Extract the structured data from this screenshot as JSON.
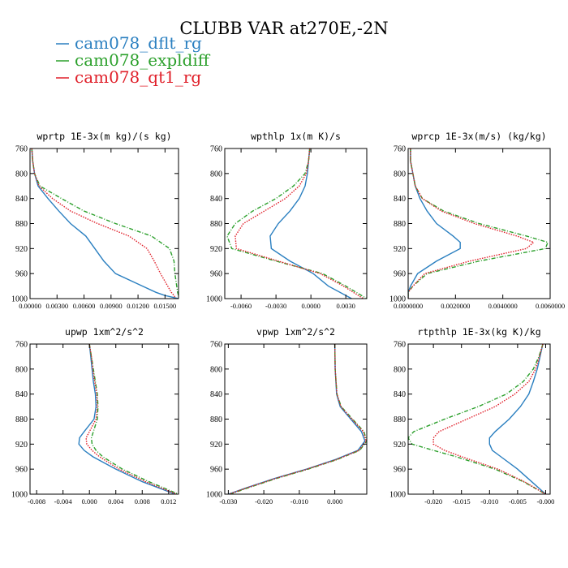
{
  "figure": {
    "title": "CLUBB VAR at270E,-2N",
    "legend": [
      {
        "label": "cam078_dflt_rg",
        "color": "#2a7fc0",
        "dash": "solid"
      },
      {
        "label": "cam078_expldiff",
        "color": "#2ca02c",
        "dash": "dashdot"
      },
      {
        "label": "cam078_qt1_rg",
        "color": "#e0202a",
        "dash": "dotted"
      }
    ]
  },
  "chart_data": [
    {
      "type": "line",
      "title": "wprtp  1E-3x(m kg)/(s kg)",
      "xlim": [
        0,
        0.0165
      ],
      "ylim": [
        760,
        1000
      ],
      "y_inverted": true,
      "xticks": [
        0,
        0.003,
        0.006,
        0.009,
        0.012,
        0.015
      ],
      "xtick_labels": [
        "0.00000",
        "0.00300",
        "0.00600",
        "0.00900",
        "0.01200",
        "0.01500"
      ],
      "yticks": [
        760,
        800,
        840,
        880,
        920,
        960,
        1000
      ],
      "ytick_labels": [
        "760",
        "800",
        "840",
        "880",
        "920",
        "960",
        "1000"
      ],
      "y": [
        760,
        780,
        800,
        820,
        840,
        860,
        880,
        900,
        920,
        940,
        960,
        980,
        990,
        995,
        1000
      ],
      "series": [
        {
          "name": "cam078_dflt_rg",
          "values": [
            0.0002,
            0.0003,
            0.0005,
            0.0009,
            0.002,
            0.0032,
            0.0045,
            0.0062,
            0.0072,
            0.0082,
            0.0095,
            0.0125,
            0.014,
            0.015,
            0.0165
          ]
        },
        {
          "name": "cam078_expldiff",
          "values": [
            0.0002,
            0.0003,
            0.0005,
            0.0011,
            0.0035,
            0.006,
            0.0095,
            0.0135,
            0.0155,
            0.016,
            0.0161,
            0.0163,
            0.0164,
            0.0165,
            0.0166
          ]
        },
        {
          "name": "cam078_qt1_rg",
          "values": [
            0.0002,
            0.0003,
            0.0005,
            0.001,
            0.0025,
            0.0045,
            0.0075,
            0.011,
            0.013,
            0.0138,
            0.0145,
            0.0153,
            0.0157,
            0.016,
            0.0162
          ]
        }
      ]
    },
    {
      "type": "line",
      "title": "wpthlp  1x(m K)/s",
      "xlim": [
        -0.0074,
        0.0048
      ],
      "ylim": [
        760,
        1000
      ],
      "y_inverted": true,
      "xticks": [
        -0.006,
        -0.003,
        0,
        0.003
      ],
      "xtick_labels": [
        "-0.0060",
        "-0.0030",
        "0.0000",
        "0.0030"
      ],
      "yticks": [
        760,
        800,
        840,
        880,
        920,
        960,
        1000
      ],
      "ytick_labels": [
        "760",
        "800",
        "840",
        "880",
        "920",
        "960",
        "1000"
      ],
      "y": [
        760,
        780,
        800,
        820,
        840,
        860,
        880,
        900,
        920,
        940,
        960,
        980,
        1000
      ],
      "series": [
        {
          "name": "cam078_dflt_rg",
          "values": [
            -0.0001,
            -0.0002,
            -0.0003,
            -0.0005,
            -0.001,
            -0.0018,
            -0.0028,
            -0.0035,
            -0.0034,
            -0.0018,
            0.0002,
            0.0015,
            0.0035
          ]
        },
        {
          "name": "cam078_expldiff",
          "values": [
            -0.0001,
            -0.0002,
            -0.0005,
            -0.0015,
            -0.003,
            -0.005,
            -0.0065,
            -0.0072,
            -0.0068,
            -0.003,
            0.001,
            0.003,
            0.0048
          ]
        },
        {
          "name": "cam078_qt1_rg",
          "values": [
            -0.0001,
            -0.0002,
            -0.0004,
            -0.001,
            -0.0022,
            -0.004,
            -0.0058,
            -0.0065,
            -0.0064,
            -0.0028,
            0.0008,
            0.0028,
            0.0045
          ]
        }
      ]
    },
    {
      "type": "line",
      "title": "wprcp  1E-3x(m/s) (kg/kg)",
      "xlim": [
        0,
        0.006
      ],
      "ylim": [
        760,
        1000
      ],
      "y_inverted": true,
      "xticks": [
        0,
        0.002,
        0.004,
        0.006
      ],
      "xtick_labels": [
        "0.0000000",
        "0.0020000",
        "0.0040000",
        "0.0060000"
      ],
      "yticks": [
        760,
        800,
        840,
        880,
        920,
        960,
        1000
      ],
      "ytick_labels": [
        "760",
        "800",
        "840",
        "880",
        "920",
        "960",
        "1000"
      ],
      "y": [
        760,
        780,
        800,
        820,
        840,
        860,
        880,
        900,
        910,
        920,
        940,
        960,
        980,
        990,
        1000
      ],
      "series": [
        {
          "name": "cam078_dflt_rg",
          "values": [
            0.0001,
            0.0001,
            0.0002,
            0.0003,
            0.0005,
            0.0008,
            0.0012,
            0.0019,
            0.0022,
            0.0022,
            0.0012,
            0.0004,
            0.0001,
            0.0,
            0.0
          ]
        },
        {
          "name": "cam078_expldiff",
          "values": [
            0.0001,
            0.0001,
            0.0002,
            0.0003,
            0.0006,
            0.0015,
            0.003,
            0.005,
            0.0059,
            0.0058,
            0.003,
            0.0008,
            0.0002,
            0.0,
            0.0
          ]
        },
        {
          "name": "cam078_qt1_rg",
          "values": [
            0.0001,
            0.0001,
            0.0002,
            0.0003,
            0.0006,
            0.0014,
            0.0028,
            0.0046,
            0.0053,
            0.005,
            0.0026,
            0.0007,
            0.0002,
            0.0,
            0.0
          ]
        }
      ]
    },
    {
      "type": "line",
      "title": "upwp  1xm^2/s^2",
      "xlim": [
        -0.009,
        0.0135
      ],
      "ylim": [
        760,
        1000
      ],
      "y_inverted": true,
      "xticks": [
        -0.008,
        -0.004,
        0,
        0.004,
        0.008,
        0.012
      ],
      "xtick_labels": [
        "-0.008",
        "-0.004",
        "0.000",
        "0.004",
        "0.008",
        "0.012"
      ],
      "yticks": [
        760,
        800,
        840,
        880,
        920,
        960,
        1000
      ],
      "ytick_labels": [
        "760",
        "800",
        "840",
        "880",
        "920",
        "960",
        "1000"
      ],
      "y": [
        760,
        780,
        800,
        820,
        840,
        860,
        880,
        900,
        910,
        920,
        930,
        940,
        960,
        980,
        1000
      ],
      "series": [
        {
          "name": "cam078_dflt_rg",
          "values": [
            0.0,
            0.0002,
            0.0004,
            0.0006,
            0.0009,
            0.001,
            0.0007,
            -0.0008,
            -0.0015,
            -0.0016,
            -0.0008,
            0.0005,
            0.004,
            0.008,
            0.013
          ]
        },
        {
          "name": "cam078_expldiff",
          "values": [
            0.0,
            0.0003,
            0.0006,
            0.0009,
            0.0012,
            0.0013,
            0.0012,
            0.0006,
            0.0003,
            0.0004,
            0.001,
            0.002,
            0.005,
            0.009,
            0.0135
          ]
        },
        {
          "name": "cam078_qt1_rg",
          "values": [
            0.0,
            0.0003,
            0.0005,
            0.0008,
            0.0011,
            0.0012,
            0.001,
            0.0,
            -0.0005,
            -0.0004,
            0.0004,
            0.0015,
            0.0045,
            0.0085,
            0.0132
          ]
        }
      ]
    },
    {
      "type": "line",
      "title": "vpwp  1xm^2/s^2",
      "xlim": [
        -0.031,
        0.009
      ],
      "ylim": [
        760,
        1000
      ],
      "y_inverted": true,
      "xticks": [
        -0.03,
        -0.02,
        -0.01,
        0
      ],
      "xtick_labels": [
        "-0.030",
        "-0.020",
        "-0.010",
        "0.000"
      ],
      "yticks": [
        760,
        800,
        840,
        880,
        920,
        960,
        1000
      ],
      "ytick_labels": [
        "760",
        "800",
        "840",
        "880",
        "920",
        "960",
        "1000"
      ],
      "y": [
        760,
        800,
        840,
        860,
        880,
        900,
        915,
        930,
        945,
        960,
        975,
        990,
        1000
      ],
      "series": [
        {
          "name": "cam078_dflt_rg",
          "values": [
            0.0,
            0.0001,
            0.0005,
            0.0015,
            0.0045,
            0.0075,
            0.0085,
            0.0065,
            0.0,
            -0.008,
            -0.017,
            -0.025,
            -0.03
          ]
        },
        {
          "name": "cam078_expldiff",
          "values": [
            0.0,
            0.0001,
            0.0006,
            0.0018,
            0.005,
            0.0082,
            0.009,
            0.007,
            0.0005,
            -0.0075,
            -0.0165,
            -0.0245,
            -0.0295
          ]
        },
        {
          "name": "cam078_qt1_rg",
          "values": [
            0.0,
            0.0001,
            0.0006,
            0.0017,
            0.0048,
            0.008,
            0.0088,
            0.0068,
            0.0003,
            -0.0078,
            -0.0168,
            -0.0248,
            -0.0298
          ]
        }
      ]
    },
    {
      "type": "line",
      "title": "rtpthlp  1E-3x(kg K)/kg",
      "xlim": [
        -0.0245,
        0.0008
      ],
      "ylim": [
        760,
        1000
      ],
      "y_inverted": true,
      "xticks": [
        -0.02,
        -0.015,
        -0.01,
        -0.005,
        0
      ],
      "xtick_labels": [
        "-0.020",
        "-0.015",
        "-0.010",
        "-0.005",
        "-0.000"
      ],
      "yticks": [
        760,
        800,
        840,
        880,
        920,
        960,
        1000
      ],
      "ytick_labels": [
        "760",
        "800",
        "840",
        "880",
        "920",
        "960",
        "1000"
      ],
      "y": [
        760,
        780,
        800,
        820,
        840,
        860,
        880,
        900,
        910,
        920,
        930,
        940,
        960,
        980,
        1000
      ],
      "series": [
        {
          "name": "cam078_dflt_rg",
          "values": [
            -0.0005,
            -0.001,
            -0.0015,
            -0.0022,
            -0.003,
            -0.0045,
            -0.0065,
            -0.009,
            -0.01,
            -0.01,
            -0.0095,
            -0.008,
            -0.005,
            -0.0025,
            0.0
          ]
        },
        {
          "name": "cam078_expldiff",
          "values": [
            -0.0005,
            -0.0012,
            -0.0022,
            -0.004,
            -0.007,
            -0.012,
            -0.018,
            -0.0235,
            -0.0245,
            -0.0238,
            -0.02,
            -0.016,
            -0.009,
            -0.004,
            0.0
          ]
        },
        {
          "name": "cam078_qt1_rg",
          "values": [
            -0.0005,
            -0.0011,
            -0.0018,
            -0.003,
            -0.0055,
            -0.009,
            -0.014,
            -0.019,
            -0.02,
            -0.02,
            -0.018,
            -0.015,
            -0.0085,
            -0.0038,
            0.0
          ]
        }
      ]
    }
  ]
}
